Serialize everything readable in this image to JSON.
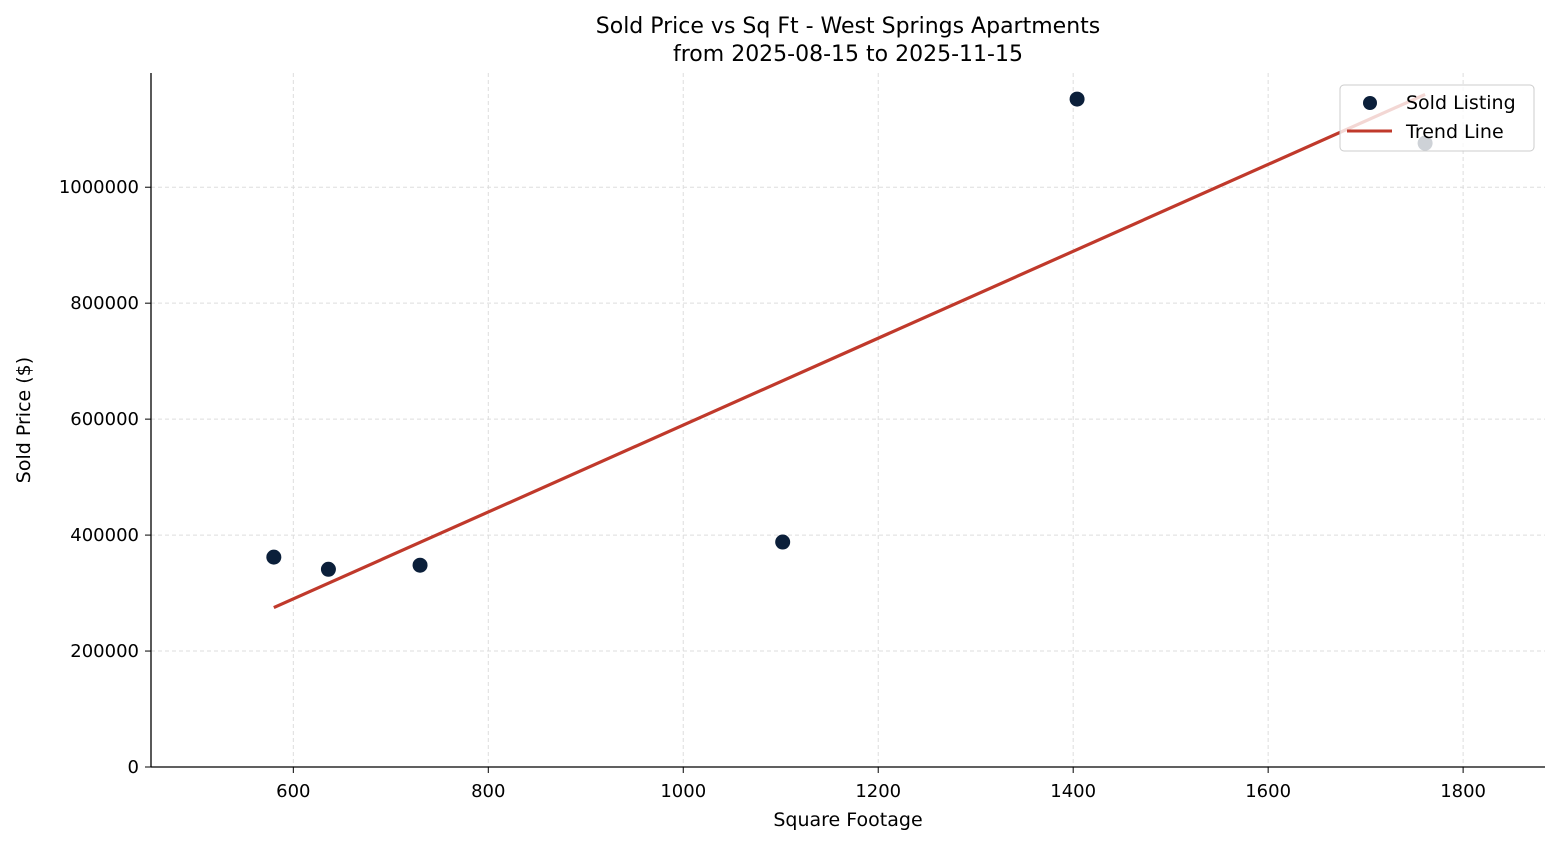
{
  "chart_data": {
    "type": "scatter",
    "title": "Sold Price vs Sq Ft - West Springs Apartments",
    "subtitle": "from 2025-08-15 to 2025-11-15",
    "xlabel": "Square Footage",
    "ylabel": "Sold Price ($)",
    "xlim": [
      454,
      1884
    ],
    "ylim": [
      0,
      1197000
    ],
    "xticks": [
      600,
      800,
      1000,
      1200,
      1400,
      1600,
      1800
    ],
    "yticks": [
      0,
      200000,
      400000,
      600000,
      800000,
      1000000
    ],
    "grid": true,
    "legend_position": "top-right",
    "series": [
      {
        "name": "Sold Listing",
        "type": "scatter",
        "color": "#0b1f3a",
        "points": [
          {
            "x": 580,
            "y": 362000
          },
          {
            "x": 636,
            "y": 341000
          },
          {
            "x": 730,
            "y": 348000
          },
          {
            "x": 1102,
            "y": 388000
          },
          {
            "x": 1404,
            "y": 1152000
          },
          {
            "x": 1761,
            "y": 1076000
          }
        ]
      },
      {
        "name": "Trend Line",
        "type": "line",
        "color": "#c0392b",
        "points": [
          {
            "x": 580,
            "y": 275000
          },
          {
            "x": 1761,
            "y": 1160000
          }
        ]
      }
    ]
  }
}
